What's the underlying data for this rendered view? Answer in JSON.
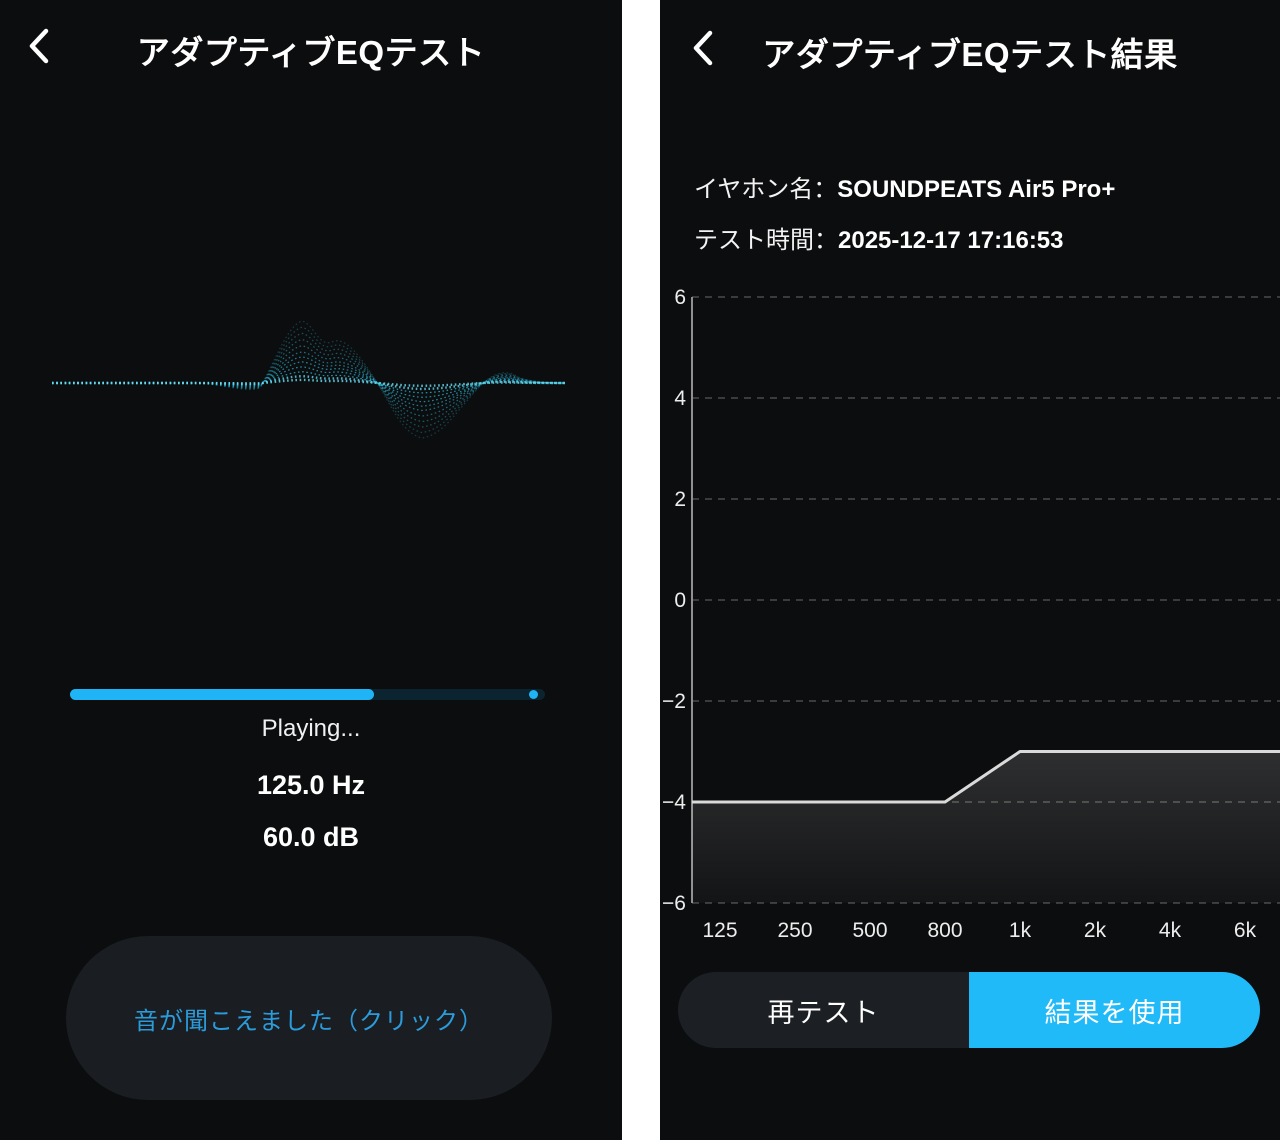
{
  "left_screen": {
    "title": "アダプティブEQテスト",
    "status_text": "Playing...",
    "frequency_value": "125.0 Hz",
    "level_value": "60.0 dB",
    "progress_percent": 64,
    "heard_button_label": "音が聞こえました（クリック）"
  },
  "right_screen": {
    "title": "アダプティブEQテスト結果",
    "info": {
      "earphone_label": "イヤホン名：",
      "earphone_value": "SOUNDPEATS Air5 Pro+",
      "time_label": "テスト時間：",
      "time_value": "2025-12-17 17:16:53"
    },
    "retest_button_label": "再テスト",
    "use_results_button_label": "結果を使用"
  },
  "chart_data": {
    "type": "area",
    "title": "",
    "xlabel": "",
    "ylabel": "",
    "x_categories": [
      "125",
      "250",
      "500",
      "800",
      "1k",
      "2k",
      "4k",
      "6k"
    ],
    "values": [
      -4,
      -4,
      -4,
      -4,
      -3,
      -3,
      -3,
      -3
    ],
    "ylim": [
      -6,
      6
    ],
    "yticks": [
      6,
      4,
      2,
      0,
      -2,
      -4,
      -6
    ],
    "ytick_labels": [
      "6",
      "4",
      "2",
      "0",
      "−2",
      "−4",
      "−6"
    ],
    "grid": "horizontal-dashed",
    "legend": "none",
    "line_color": "#dadada",
    "area_fill": "rgba(255,255,255,0.10)"
  },
  "colors": {
    "panel_background": "#0c0d0e",
    "accent_blue": "#21baf8",
    "progress_fill_blue": "#1fb4f6",
    "progress_track": "#0c2330",
    "heard_button_text_blue": "#2b9cdb",
    "waveform_cyan": "#2fc2e4",
    "grid_line": "#4b4b4b",
    "eq_line": "#dadada"
  },
  "icons": {
    "back": "chevron-left"
  }
}
